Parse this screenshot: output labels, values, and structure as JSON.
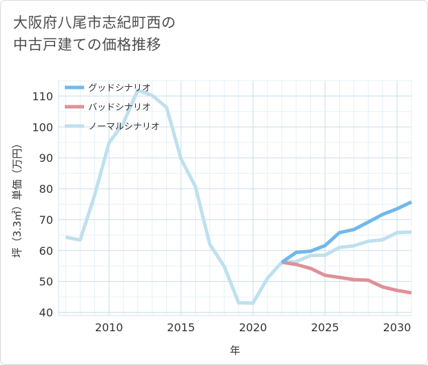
{
  "title_lines": [
    "大阪府八尾市志紀町西の",
    "中古戸建ての価格推移"
  ],
  "chart_data": {
    "type": "line",
    "title": "大阪府八尾市志紀町西の中古戸建ての価格推移",
    "xlabel": "年",
    "ylabel": "坪（3.3㎡）単価（万円）",
    "xlim": [
      2006.5,
      2031
    ],
    "ylim": [
      39,
      115
    ],
    "xticks": [
      2010,
      2015,
      2020,
      2025,
      2030
    ],
    "yticks": [
      40,
      50,
      60,
      70,
      80,
      90,
      100,
      110
    ],
    "grid": true,
    "legend_position": "top-left",
    "series": [
      {
        "name": "グッドシナリオ",
        "color": "#6fb8ec",
        "points": [
          [
            2022,
            56.2
          ],
          [
            2023,
            59.4
          ],
          [
            2024,
            59.8
          ],
          [
            2025,
            61.6
          ],
          [
            2026,
            65.8
          ],
          [
            2027,
            66.8
          ],
          [
            2028,
            69.2
          ],
          [
            2029,
            71.7
          ],
          [
            2030,
            73.5
          ],
          [
            2031,
            75.7
          ]
        ]
      },
      {
        "name": "バッドシナリオ",
        "color": "#e09098",
        "points": [
          [
            2022,
            56.2
          ],
          [
            2023,
            55.5
          ],
          [
            2024,
            54.2
          ],
          [
            2025,
            52.0
          ],
          [
            2026,
            51.3
          ],
          [
            2027,
            50.6
          ],
          [
            2028,
            50.4
          ],
          [
            2029,
            48.2
          ],
          [
            2030,
            47.1
          ],
          [
            2031,
            46.3
          ]
        ]
      },
      {
        "name": "ノーマルシナリオ",
        "color": "#bfe0ee",
        "points": [
          [
            2007,
            64.3
          ],
          [
            2008,
            63.4
          ],
          [
            2009,
            77.8
          ],
          [
            2010,
            94.8
          ],
          [
            2011,
            101.2
          ],
          [
            2012,
            111.9
          ],
          [
            2013,
            110.2
          ],
          [
            2014,
            106.3
          ],
          [
            2015,
            89.7
          ],
          [
            2016,
            80.7
          ],
          [
            2017,
            62.0
          ],
          [
            2018,
            54.9
          ],
          [
            2019,
            43.1
          ],
          [
            2020,
            43.0
          ],
          [
            2021,
            51.0
          ],
          [
            2022,
            56.2
          ],
          [
            2023,
            56.4
          ],
          [
            2024,
            58.4
          ],
          [
            2025,
            58.5
          ],
          [
            2026,
            61.0
          ],
          [
            2027,
            61.5
          ],
          [
            2028,
            63.0
          ],
          [
            2029,
            63.5
          ],
          [
            2030,
            65.8
          ],
          [
            2031,
            66.0
          ]
        ]
      }
    ]
  }
}
